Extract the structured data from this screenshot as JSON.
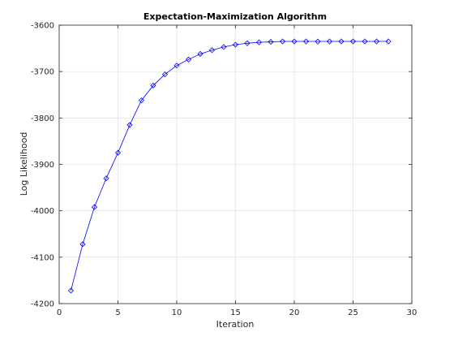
{
  "chart_data": {
    "type": "line",
    "title": "Expectation-Maximization Algorithm",
    "xlabel": "Iteration",
    "ylabel": "Log Likelihood",
    "xlim": [
      0,
      30
    ],
    "ylim": [
      -4200,
      -3600
    ],
    "xticks": [
      "0",
      "5",
      "10",
      "15",
      "20",
      "25",
      "30"
    ],
    "yticks": [
      "-3600",
      "-3700",
      "-3800",
      "-3900",
      "-4000",
      "-4100",
      "-4200"
    ],
    "grid": true,
    "marker": "diamond",
    "line_color": "#0000ff",
    "series": [
      {
        "x": [
          1,
          2,
          3,
          4,
          5,
          6,
          7,
          8,
          9,
          10,
          11,
          12,
          13,
          14,
          15,
          16,
          17,
          18,
          19,
          20,
          21,
          22,
          23,
          24,
          25,
          26,
          27,
          28
        ],
        "y": [
          -4172,
          -4072,
          -3992,
          -3930,
          -3875,
          -3815,
          -3762,
          -3730,
          -3706,
          -3687,
          -3674,
          -3662,
          -3654,
          -3647,
          -3642,
          -3639,
          -3637,
          -3636,
          -3635,
          -3635,
          -3635,
          -3635,
          -3635,
          -3635,
          -3635,
          -3635,
          -3635,
          -3635
        ]
      }
    ]
  }
}
